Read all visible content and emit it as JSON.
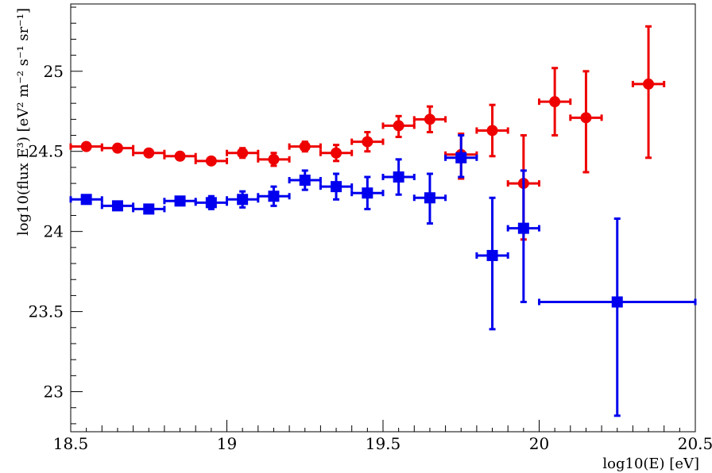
{
  "chart_data": {
    "type": "scatter",
    "title": "",
    "xlabel": "log10(E) [eV]",
    "ylabel": "log10(flux E³) [eV² m⁻² s⁻¹ sr⁻¹]",
    "xlim": [
      18.5,
      20.5
    ],
    "ylim": [
      22.75,
      25.42
    ],
    "x_ticks": [
      "18.5",
      "19",
      "19.5",
      "20",
      "20.5"
    ],
    "y_ticks": [
      "23",
      "23.5",
      "24",
      "24.5",
      "25"
    ],
    "grid": false,
    "series": [
      {
        "color": "#ee0000",
        "marker": "circle",
        "points": [
          {
            "x": 18.55,
            "xerr": 0.05,
            "y": 24.53,
            "ylo": 0.02,
            "yhi": 0.02
          },
          {
            "x": 18.65,
            "xerr": 0.05,
            "y": 24.52,
            "ylo": 0.02,
            "yhi": 0.02
          },
          {
            "x": 18.75,
            "xerr": 0.05,
            "y": 24.49,
            "ylo": 0.02,
            "yhi": 0.02
          },
          {
            "x": 18.85,
            "xerr": 0.05,
            "y": 24.47,
            "ylo": 0.02,
            "yhi": 0.02
          },
          {
            "x": 18.95,
            "xerr": 0.05,
            "y": 24.44,
            "ylo": 0.02,
            "yhi": 0.02
          },
          {
            "x": 19.05,
            "xerr": 0.05,
            "y": 24.49,
            "ylo": 0.03,
            "yhi": 0.03
          },
          {
            "x": 19.15,
            "xerr": 0.05,
            "y": 24.45,
            "ylo": 0.04,
            "yhi": 0.04
          },
          {
            "x": 19.25,
            "xerr": 0.05,
            "y": 24.53,
            "ylo": 0.03,
            "yhi": 0.03
          },
          {
            "x": 19.35,
            "xerr": 0.05,
            "y": 24.49,
            "ylo": 0.05,
            "yhi": 0.05
          },
          {
            "x": 19.45,
            "xerr": 0.05,
            "y": 24.56,
            "ylo": 0.06,
            "yhi": 0.06
          },
          {
            "x": 19.55,
            "xerr": 0.05,
            "y": 24.66,
            "ylo": 0.07,
            "yhi": 0.06
          },
          {
            "x": 19.65,
            "xerr": 0.05,
            "y": 24.7,
            "ylo": 0.08,
            "yhi": 0.08
          },
          {
            "x": 19.75,
            "xerr": 0.05,
            "y": 24.48,
            "ylo": 0.15,
            "yhi": 0.13
          },
          {
            "x": 19.85,
            "xerr": 0.05,
            "y": 24.63,
            "ylo": 0.16,
            "yhi": 0.16
          },
          {
            "x": 19.95,
            "xerr": 0.05,
            "y": 24.3,
            "ylo": 0.35,
            "yhi": 0.3
          },
          {
            "x": 20.05,
            "xerr": 0.05,
            "y": 24.81,
            "ylo": 0.21,
            "yhi": 0.21
          },
          {
            "x": 20.15,
            "xerr": 0.05,
            "y": 24.71,
            "ylo": 0.34,
            "yhi": 0.29
          },
          {
            "x": 20.35,
            "xerr": 0.05,
            "y": 24.92,
            "ylo": 0.46,
            "yhi": 0.36
          }
        ]
      },
      {
        "color": "#0000ee",
        "marker": "square",
        "points": [
          {
            "x": 18.55,
            "xerr": 0.05,
            "y": 24.2,
            "ylo": 0.02,
            "yhi": 0.02
          },
          {
            "x": 18.65,
            "xerr": 0.05,
            "y": 24.16,
            "ylo": 0.02,
            "yhi": 0.02
          },
          {
            "x": 18.75,
            "xerr": 0.05,
            "y": 24.14,
            "ylo": 0.02,
            "yhi": 0.02
          },
          {
            "x": 18.85,
            "xerr": 0.05,
            "y": 24.19,
            "ylo": 0.02,
            "yhi": 0.02
          },
          {
            "x": 18.95,
            "xerr": 0.05,
            "y": 24.18,
            "ylo": 0.04,
            "yhi": 0.04
          },
          {
            "x": 19.05,
            "xerr": 0.05,
            "y": 24.2,
            "ylo": 0.05,
            "yhi": 0.05
          },
          {
            "x": 19.15,
            "xerr": 0.05,
            "y": 24.22,
            "ylo": 0.06,
            "yhi": 0.06
          },
          {
            "x": 19.25,
            "xerr": 0.05,
            "y": 24.32,
            "ylo": 0.06,
            "yhi": 0.06
          },
          {
            "x": 19.35,
            "xerr": 0.05,
            "y": 24.28,
            "ylo": 0.08,
            "yhi": 0.08
          },
          {
            "x": 19.45,
            "xerr": 0.05,
            "y": 24.24,
            "ylo": 0.1,
            "yhi": 0.1
          },
          {
            "x": 19.55,
            "xerr": 0.05,
            "y": 24.34,
            "ylo": 0.11,
            "yhi": 0.11
          },
          {
            "x": 19.65,
            "xerr": 0.05,
            "y": 24.21,
            "ylo": 0.16,
            "yhi": 0.15
          },
          {
            "x": 19.75,
            "xerr": 0.05,
            "y": 24.46,
            "ylo": 0.12,
            "yhi": 0.14
          },
          {
            "x": 19.85,
            "xerr": 0.05,
            "y": 23.85,
            "ylo": 0.46,
            "yhi": 0.36
          },
          {
            "x": 19.95,
            "xerr": 0.05,
            "y": 24.02,
            "ylo": 0.46,
            "yhi": 0.36
          },
          {
            "x": 20.25,
            "xerr": 0.25,
            "y": 23.56,
            "ylo": 0.71,
            "yhi": 0.52
          }
        ]
      }
    ]
  }
}
